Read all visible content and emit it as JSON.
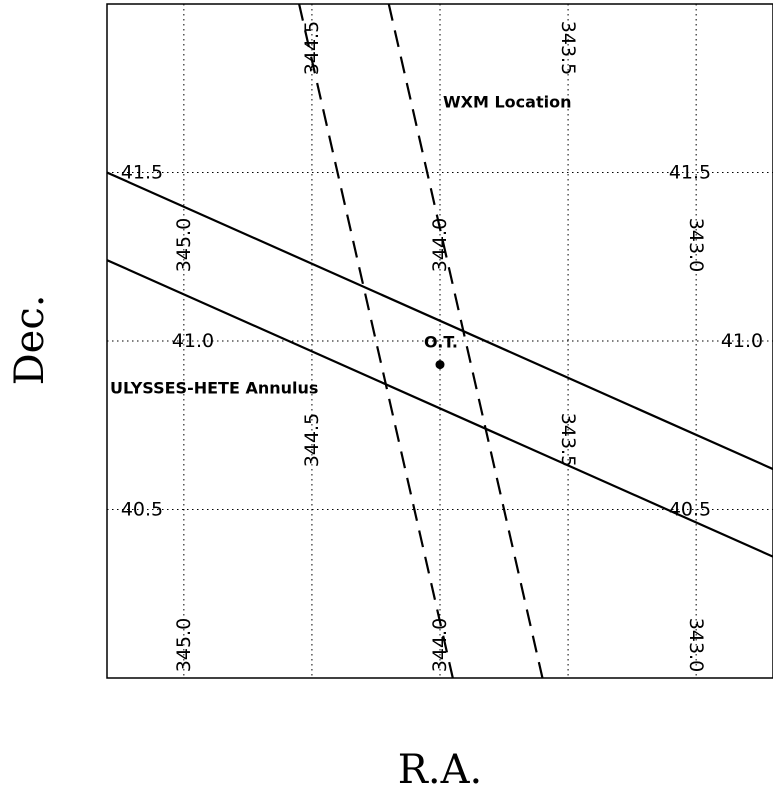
{
  "chart_data": {
    "type": "line",
    "title": "",
    "xlabel": "R.A.",
    "ylabel": "Dec.",
    "xlim": [
      345.3,
      342.7
    ],
    "ylim": [
      40.0,
      42.0
    ],
    "grid": true,
    "ra_grid": [
      345.0,
      344.5,
      344.0,
      343.5,
      343.0
    ],
    "dec_grid": [
      41.5,
      41.0,
      40.5
    ],
    "ra_tick_labels": {
      "upper": [
        "345.0",
        "344.5",
        "344.0",
        "343.5",
        "343.0"
      ],
      "lower": [
        "345.0",
        "344.5",
        "344.0",
        "343.5",
        "343.0"
      ]
    },
    "dec_tick_labels": {
      "left": [
        "41.5",
        "41.0",
        "40.5"
      ],
      "right": [
        "41.5",
        "41.0",
        "40.5"
      ]
    },
    "series": [
      {
        "style": "solid",
        "x": [
          345.3,
          342.7
        ],
        "y": [
          41.5,
          40.62
        ]
      },
      {
        "style": "solid",
        "x": [
          345.3,
          342.7
        ],
        "y": [
          41.24,
          40.36
        ]
      },
      {
        "style": "dashed",
        "x": [
          344.55,
          343.95
        ],
        "y": [
          42.0,
          40.0
        ]
      },
      {
        "style": "dashed",
        "x": [
          344.2,
          343.6
        ],
        "y": [
          42.0,
          40.0
        ]
      }
    ],
    "points": [
      {
        "label": "O.T.",
        "x": 344.0,
        "y": 40.93
      }
    ],
    "annotations": [
      {
        "text": "WXM Location",
        "x": 344.0,
        "y": 41.71
      },
      {
        "text": "ULYSSES-HETE Annulus",
        "x": 345.3,
        "y": 40.85
      },
      {
        "text": "O.T.",
        "x": 344.12,
        "y": 40.98
      }
    ]
  }
}
